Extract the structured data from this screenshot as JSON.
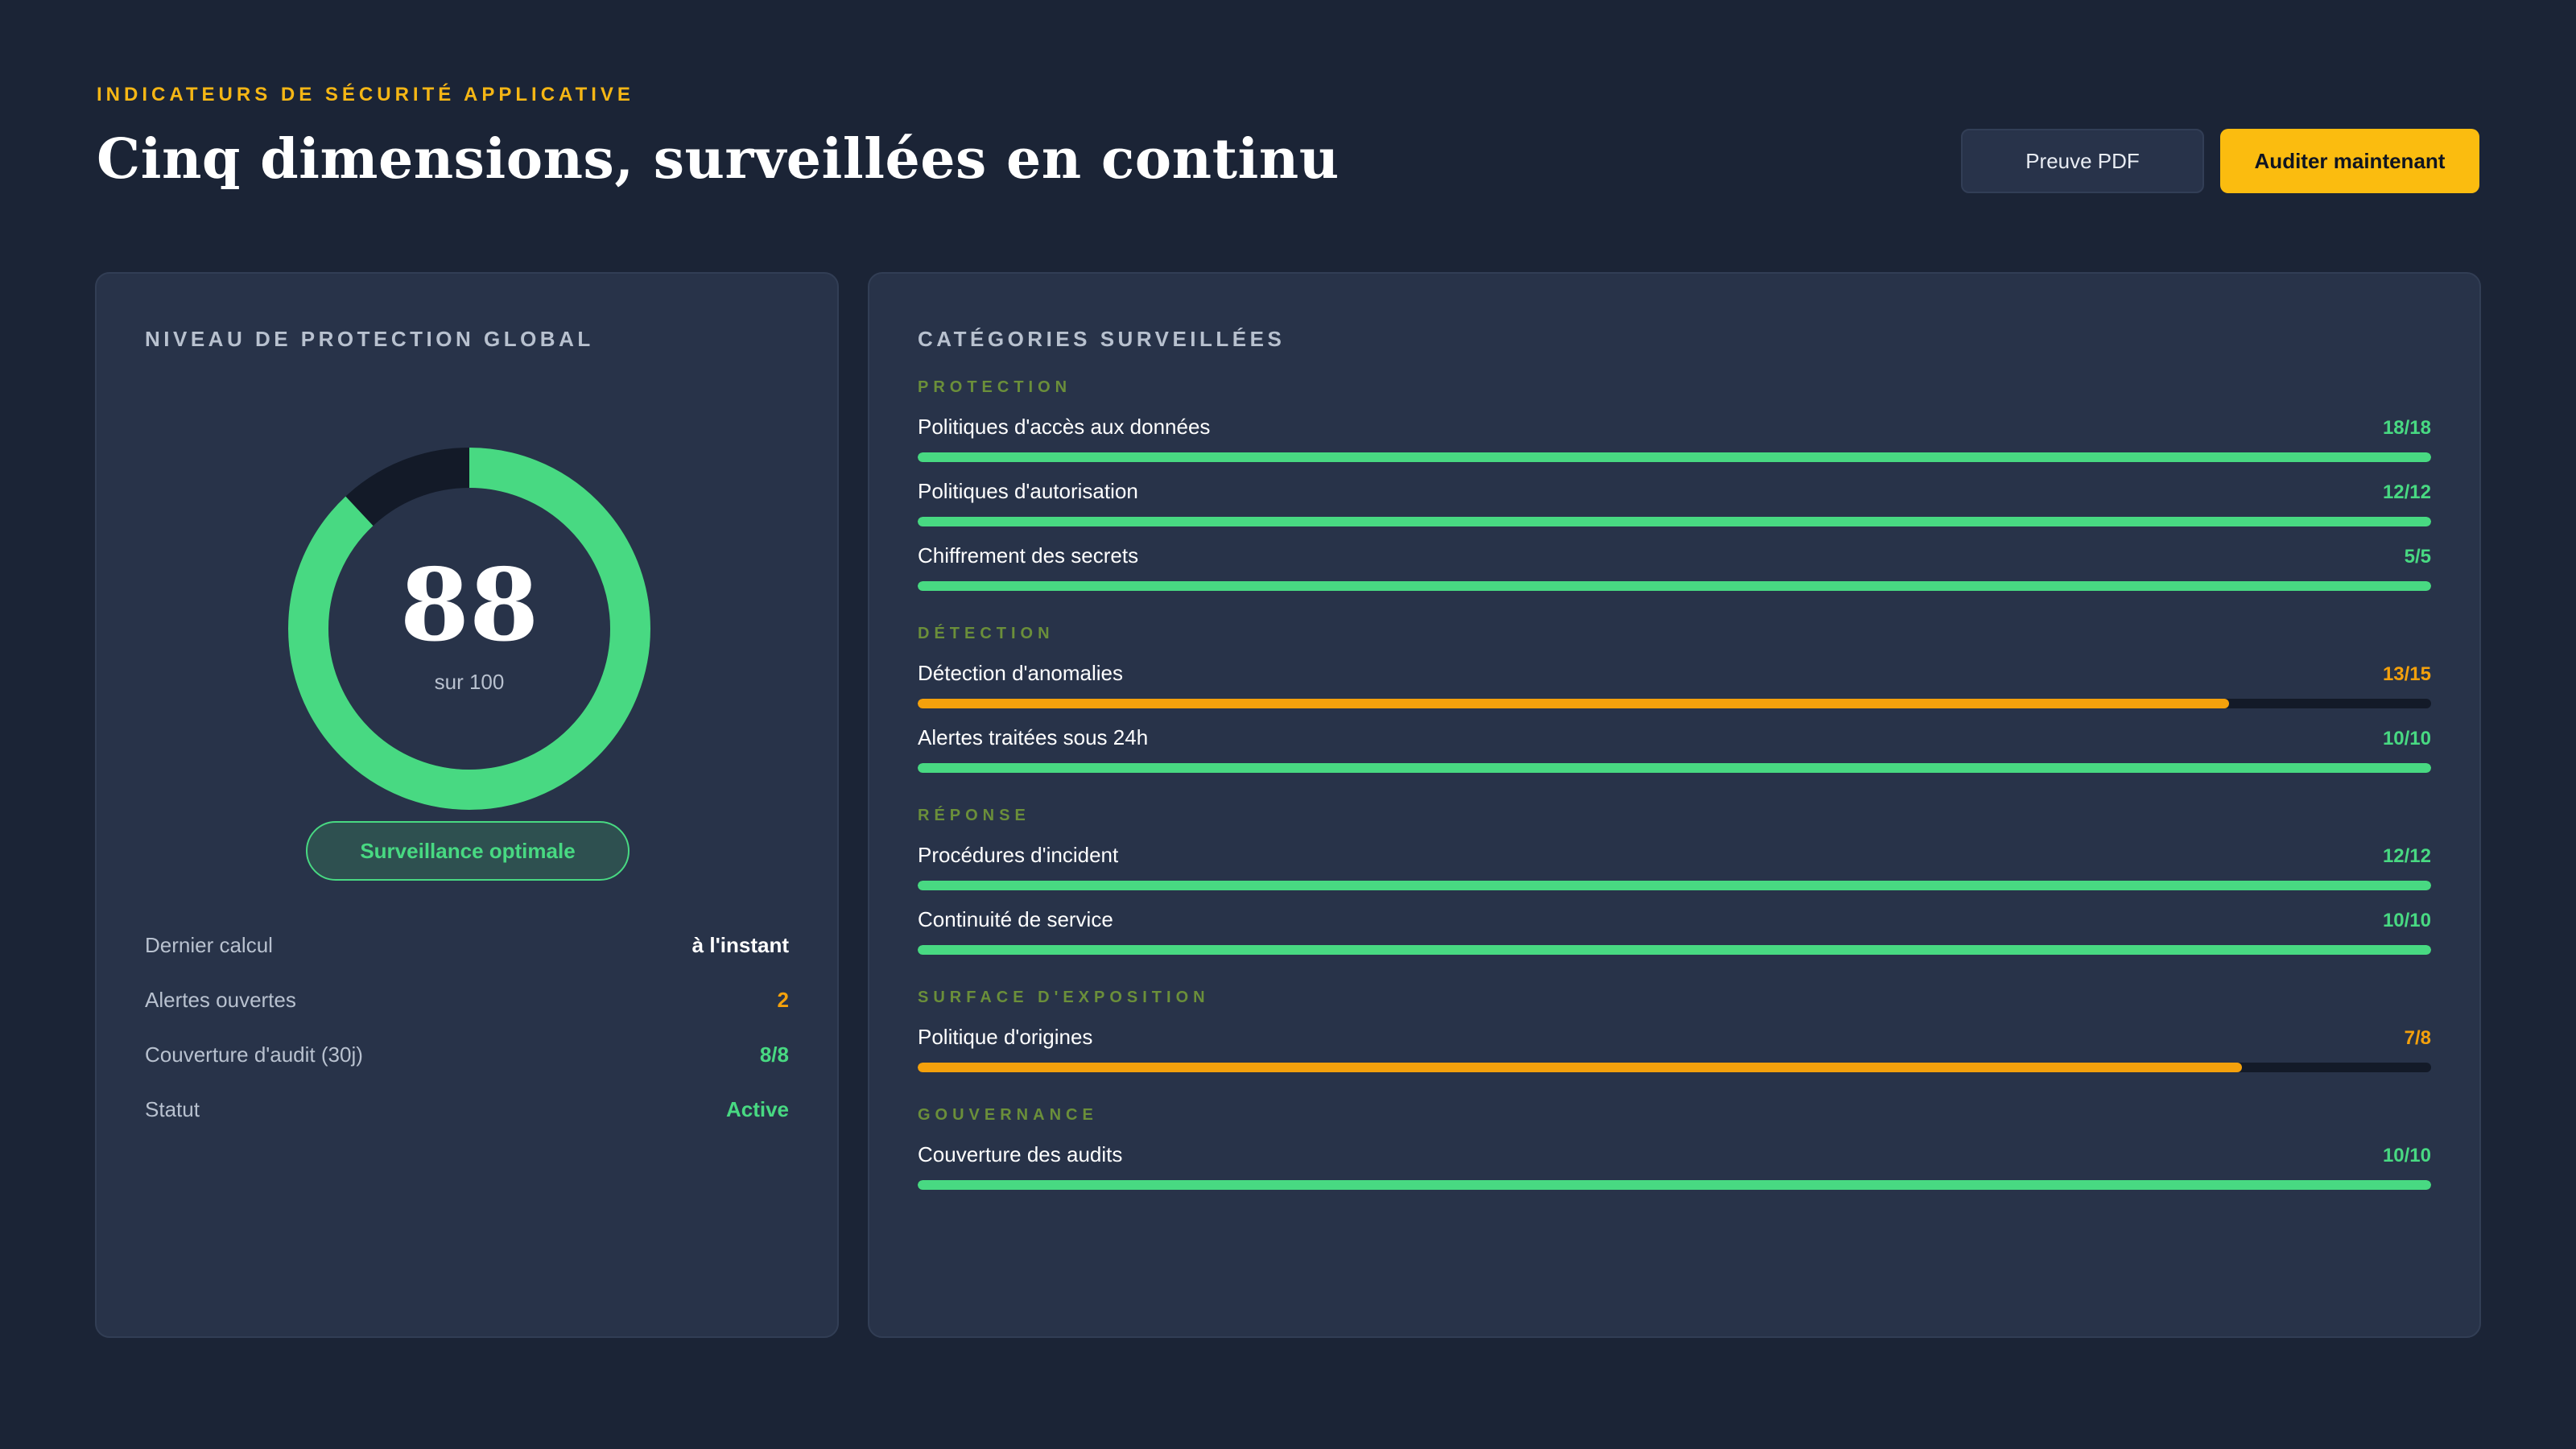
{
  "header": {
    "eyebrow": "INDICATEURS DE SÉCURITÉ APPLICATIVE",
    "title": "Cinq dimensions, surveillées en continu",
    "secondary_button": "Preuve PDF",
    "primary_button": "Auditer maintenant"
  },
  "colors": {
    "background": "#1b2436",
    "card": "#283349",
    "accent": "#fbbc0f",
    "success": "#48d982",
    "warning": "#f4a10c",
    "track": "#131a28"
  },
  "overview": {
    "title": "NIVEAU DE PROTECTION GLOBAL",
    "score": 88,
    "score_label": "88",
    "score_max_label": "sur 100",
    "badge": "Surveillance optimale",
    "stats": [
      {
        "label": "Dernier calcul",
        "value": "à l'instant",
        "color": "#ffffff"
      },
      {
        "label": "Alertes ouvertes",
        "value": "2",
        "color": "#f4a10c"
      },
      {
        "label": "Couverture d'audit (30j)",
        "value": "8/8",
        "color": "#48d982"
      },
      {
        "label": "Statut",
        "value": "Active",
        "color": "#48d982"
      }
    ]
  },
  "categories": {
    "title": "CATÉGORIES SURVEILLÉES",
    "groups": [
      {
        "label": "PROTECTION",
        "items": [
          {
            "name": "Politiques d'accès aux données",
            "score": "18/18",
            "fraction": 1.0,
            "status": "ok"
          },
          {
            "name": "Politiques d'autorisation",
            "score": "12/12",
            "fraction": 1.0,
            "status": "ok"
          },
          {
            "name": "Chiffrement des secrets",
            "score": "5/5",
            "fraction": 1.0,
            "status": "ok"
          }
        ]
      },
      {
        "label": "DÉTECTION",
        "items": [
          {
            "name": "Détection d'anomalies",
            "score": "13/15",
            "fraction": 0.8667,
            "status": "warn"
          },
          {
            "name": "Alertes traitées sous 24h",
            "score": "10/10",
            "fraction": 1.0,
            "status": "ok"
          }
        ]
      },
      {
        "label": "RÉPONSE",
        "items": [
          {
            "name": "Procédures d'incident",
            "score": "12/12",
            "fraction": 1.0,
            "status": "ok"
          },
          {
            "name": "Continuité de service",
            "score": "10/10",
            "fraction": 1.0,
            "status": "ok"
          }
        ]
      },
      {
        "label": "SURFACE D'EXPOSITION",
        "items": [
          {
            "name": "Politique d'origines",
            "score": "7/8",
            "fraction": 0.875,
            "status": "warn"
          }
        ]
      },
      {
        "label": "GOUVERNANCE",
        "items": [
          {
            "name": "Couverture des audits",
            "score": "10/10",
            "fraction": 1.0,
            "status": "ok"
          }
        ]
      }
    ]
  }
}
